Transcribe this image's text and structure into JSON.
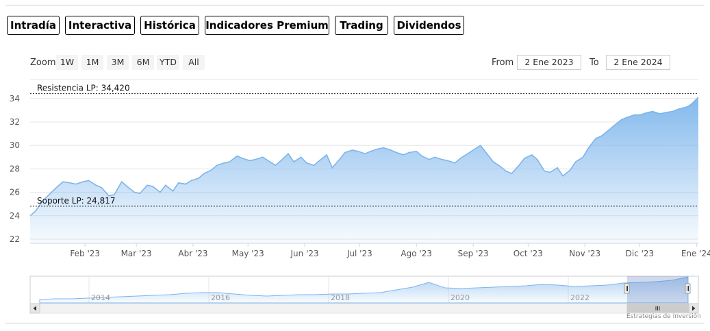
{
  "tabs": [
    {
      "label": "Intradía",
      "style": "purple"
    },
    {
      "label": "Interactiva",
      "style": "purple"
    },
    {
      "label": "Histórica",
      "style": "active"
    },
    {
      "label": "Indicadores Premium",
      "style": "red"
    },
    {
      "label": "Trading",
      "style": "red"
    },
    {
      "label": "Dividendos",
      "style": "purple"
    }
  ],
  "zoom": {
    "label": "Zoom",
    "buttons": [
      "1W",
      "1M",
      "3M",
      "6M",
      "YTD",
      "All"
    ]
  },
  "range": {
    "from_label": "From",
    "from_value": "2 Ene 2023",
    "to_label": "To",
    "to_value": "2 Ene 2024"
  },
  "credits": "Estrategias de Inversión",
  "colors": {
    "tab_purple": "#7f7aa8",
    "tab_red": "#e08a82",
    "series_line": "#7cb5ec",
    "series_fill": "#9dc4f0"
  },
  "chart_data": {
    "type": "area",
    "title": "",
    "ylim": [
      22,
      34
    ],
    "y_ticks": [
      22,
      24,
      26,
      28,
      30,
      32,
      34
    ],
    "x_range": [
      "2023-01-02",
      "2024-01-02"
    ],
    "x_ticks": [
      "Feb '23",
      "Mar '23",
      "Abr '23",
      "May '23",
      "Jun '23",
      "Jul '23",
      "Ago '23",
      "Sep '23",
      "Oct '23",
      "Nov '23",
      "Dic '23",
      "Ene '24"
    ],
    "grid": true,
    "plot_lines": [
      {
        "label": "Resistencia LP: 34,420",
        "value": 34.42
      },
      {
        "label": "Soporte LP: 24,817",
        "value": 24.817
      }
    ],
    "series": [
      {
        "x": [
          "2023-01-02",
          "2023-01-05",
          "2023-01-09",
          "2023-01-13",
          "2023-01-17",
          "2023-01-20",
          "2023-01-24",
          "2023-01-27",
          "2023-01-31",
          "2023-02-03",
          "2023-02-07",
          "2023-02-10",
          "2023-02-14",
          "2023-02-17",
          "2023-02-21",
          "2023-02-24",
          "2023-02-28",
          "2023-03-03",
          "2023-03-07",
          "2023-03-10",
          "2023-03-14",
          "2023-03-17",
          "2023-03-21",
          "2023-03-24",
          "2023-03-28",
          "2023-03-31",
          "2023-04-04",
          "2023-04-07",
          "2023-04-11",
          "2023-04-14",
          "2023-04-18",
          "2023-04-21",
          "2023-04-25",
          "2023-04-28",
          "2023-05-02",
          "2023-05-05",
          "2023-05-09",
          "2023-05-12",
          "2023-05-16",
          "2023-05-19",
          "2023-05-23",
          "2023-05-26",
          "2023-05-30",
          "2023-06-02",
          "2023-06-06",
          "2023-06-09",
          "2023-06-13",
          "2023-06-16",
          "2023-06-20",
          "2023-06-23",
          "2023-06-27",
          "2023-06-30",
          "2023-07-04",
          "2023-07-07",
          "2023-07-11",
          "2023-07-14",
          "2023-07-18",
          "2023-07-21",
          "2023-07-25",
          "2023-07-28",
          "2023-08-01",
          "2023-08-04",
          "2023-08-08",
          "2023-08-11",
          "2023-08-15",
          "2023-08-18",
          "2023-08-22",
          "2023-08-25",
          "2023-08-29",
          "2023-09-01",
          "2023-09-05",
          "2023-09-08",
          "2023-09-12",
          "2023-09-15",
          "2023-09-19",
          "2023-09-22",
          "2023-09-26",
          "2023-09-29",
          "2023-10-03",
          "2023-10-06",
          "2023-10-10",
          "2023-10-13",
          "2023-10-17",
          "2023-10-20",
          "2023-10-24",
          "2023-10-27",
          "2023-10-31",
          "2023-11-03",
          "2023-11-07",
          "2023-11-10",
          "2023-11-14",
          "2023-11-17",
          "2023-11-21",
          "2023-11-24",
          "2023-11-28",
          "2023-12-01",
          "2023-12-05",
          "2023-12-08",
          "2023-12-12",
          "2023-12-15",
          "2023-12-19",
          "2023-12-22",
          "2023-12-27",
          "2023-12-29",
          "2024-01-02"
        ],
        "values": [
          24.0,
          24.4,
          25.3,
          25.9,
          26.5,
          26.9,
          26.8,
          26.7,
          26.9,
          27.0,
          26.6,
          26.4,
          25.7,
          25.8,
          26.9,
          26.5,
          26.0,
          25.9,
          26.6,
          26.5,
          26.0,
          26.6,
          26.1,
          26.8,
          26.7,
          27.0,
          27.2,
          27.6,
          27.9,
          28.3,
          28.5,
          28.6,
          29.1,
          28.9,
          28.7,
          28.8,
          29.0,
          28.7,
          28.3,
          28.7,
          29.3,
          28.6,
          29.0,
          28.5,
          28.3,
          28.7,
          29.2,
          28.1,
          28.8,
          29.4,
          29.6,
          29.5,
          29.3,
          29.5,
          29.7,
          29.8,
          29.6,
          29.4,
          29.2,
          29.4,
          29.5,
          29.1,
          28.8,
          29.0,
          28.8,
          28.7,
          28.5,
          28.9,
          29.3,
          29.6,
          30.0,
          29.4,
          28.6,
          28.3,
          27.8,
          27.6,
          28.3,
          28.9,
          29.2,
          28.8,
          27.8,
          27.7,
          28.1,
          27.4,
          27.9,
          28.6,
          29.0,
          29.8,
          30.6,
          30.8,
          31.3,
          31.7,
          32.2,
          32.4,
          32.6,
          32.6,
          32.8,
          32.9,
          32.7,
          32.8,
          32.9,
          33.1,
          33.3,
          33.5,
          34.1
        ]
      }
    ]
  },
  "navigator": {
    "x_ticks": [
      "2014",
      "2016",
      "2018",
      "2020",
      "2022"
    ]
  }
}
